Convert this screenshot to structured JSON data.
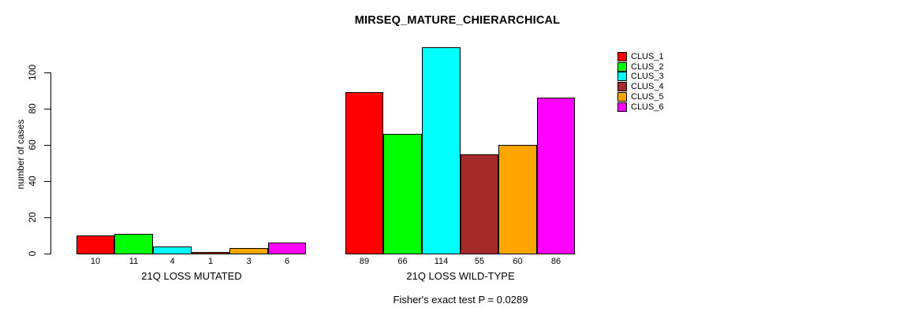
{
  "chart_data": {
    "type": "bar",
    "title": "MIRSEQ_MATURE_CHIERARCHICAL",
    "ylabel": "number of cases",
    "xlabel": "",
    "ylim": [
      0,
      115
    ],
    "yticks": [
      0,
      20,
      40,
      60,
      80,
      100
    ],
    "grid": false,
    "legend_position": "right",
    "legend": [
      {
        "label": "CLUS_1",
        "color": "#FF0000"
      },
      {
        "label": "CLUS_2",
        "color": "#00FF00"
      },
      {
        "label": "CLUS_3",
        "color": "#00FFFF"
      },
      {
        "label": "CLUS_4",
        "color": "#A52A2A"
      },
      {
        "label": "CLUS_5",
        "color": "#FFA500"
      },
      {
        "label": "CLUS_6",
        "color": "#FF00FF"
      }
    ],
    "groups": [
      {
        "label": "21Q LOSS MUTATED",
        "values": [
          10,
          11,
          4,
          1,
          3,
          6
        ]
      },
      {
        "label": "21Q LOSS WILD-TYPE",
        "values": [
          89,
          66,
          114,
          55,
          60,
          86
        ]
      }
    ],
    "bar_value_labels_shown": true,
    "annotation": "Fisher's exact test P = 0.0289",
    "colors": {
      "background": "#FFFFFF",
      "axis": "#000000",
      "text": "#000000",
      "bar_border": "#000000"
    }
  }
}
